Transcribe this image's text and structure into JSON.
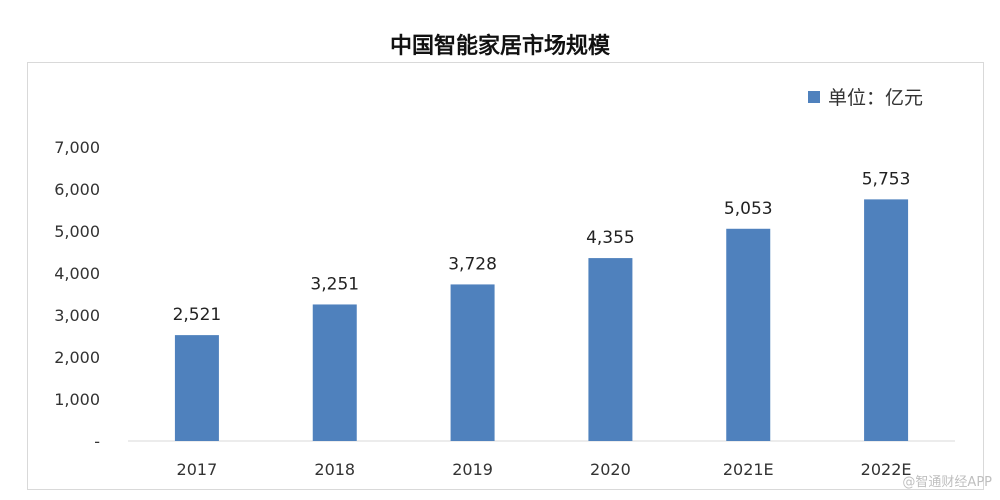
{
  "chart_data": {
    "type": "bar",
    "title": "中国智能家居市场规模",
    "categories": [
      "2017",
      "2018",
      "2019",
      "2020",
      "2021E",
      "2022E"
    ],
    "series": [
      {
        "name": "单位：亿元",
        "values": [
          2521,
          3251,
          3728,
          4355,
          5053,
          5753
        ],
        "color": "#4f81bd"
      }
    ],
    "data_labels": [
      "2,521",
      "3,251",
      "3,728",
      "4,355",
      "5,053",
      "5,753"
    ],
    "ylim": [
      0,
      7000
    ],
    "y_ticks": [
      0,
      1000,
      2000,
      3000,
      4000,
      5000,
      6000,
      7000
    ],
    "y_tick_labels": [
      "-",
      "1,000",
      "2,000",
      "3,000",
      "4,000",
      "5,000",
      "6,000",
      "7,000"
    ],
    "xlabel": "",
    "ylabel": "",
    "grid": false,
    "legend_position": "top-right"
  },
  "watermark": "@智通财经APP"
}
